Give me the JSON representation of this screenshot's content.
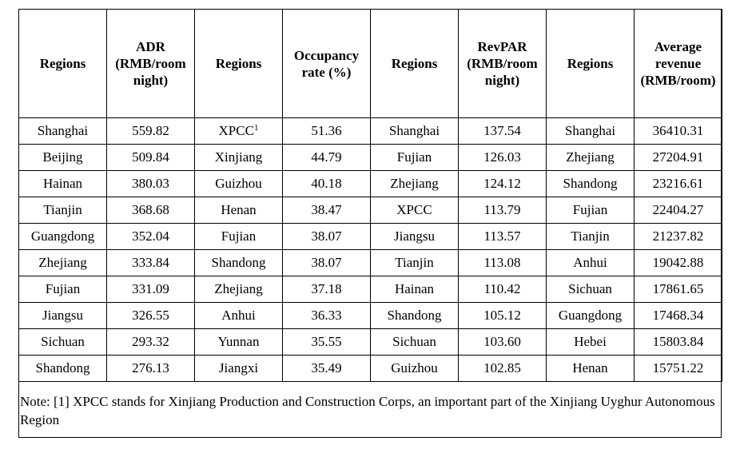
{
  "headers": [
    "Regions",
    "ADR (RMB/room night)",
    "Regions",
    "Occupancy rate (%)",
    "Regions",
    "RevPAR (RMB/room night)",
    "Regions",
    "Average revenue (RMB/room)"
  ],
  "rows": [
    [
      "Shanghai",
      "559.82",
      "XPCC",
      "51.36",
      "Shanghai",
      "137.54",
      "Shanghai",
      "36410.31"
    ],
    [
      "Beijing",
      "509.84",
      "Xinjiang",
      "44.79",
      "Fujian",
      "126.03",
      "Zhejiang",
      "27204.91"
    ],
    [
      "Hainan",
      "380.03",
      "Guizhou",
      "40.18",
      "Zhejiang",
      "124.12",
      "Shandong",
      "23216.61"
    ],
    [
      "Tianjin",
      "368.68",
      "Henan",
      "38.47",
      "XPCC",
      "113.79",
      "Fujian",
      "22404.27"
    ],
    [
      "Guangdong",
      "352.04",
      "Fujian",
      "38.07",
      "Jiangsu",
      "113.57",
      "Tianjin",
      "21237.82"
    ],
    [
      "Zhejiang",
      "333.84",
      "Shandong",
      "38.07",
      "Tianjin",
      "113.08",
      "Anhui",
      "19042.88"
    ],
    [
      "Fujian",
      "331.09",
      "Zhejiang",
      "37.18",
      "Hainan",
      "110.42",
      "Sichuan",
      "17861.65"
    ],
    [
      "Jiangsu",
      "326.55",
      "Anhui",
      "36.33",
      "Shandong",
      "105.12",
      "Guangdong",
      "17468.34"
    ],
    [
      "Sichuan",
      "293.32",
      "Yunnan",
      "35.55",
      "Sichuan",
      "103.60",
      "Hebei",
      "15803.84"
    ],
    [
      "Shandong",
      "276.13",
      "Jiangxi",
      "35.49",
      "Guizhou",
      "102.85",
      "Henan",
      "15751.22"
    ]
  ],
  "footnote_marker": "1",
  "note": "Note: [1]    XPCC stands for Xinjiang Production and Construction Corps, an important part of the Xinjiang Uyghur Autonomous Region"
}
